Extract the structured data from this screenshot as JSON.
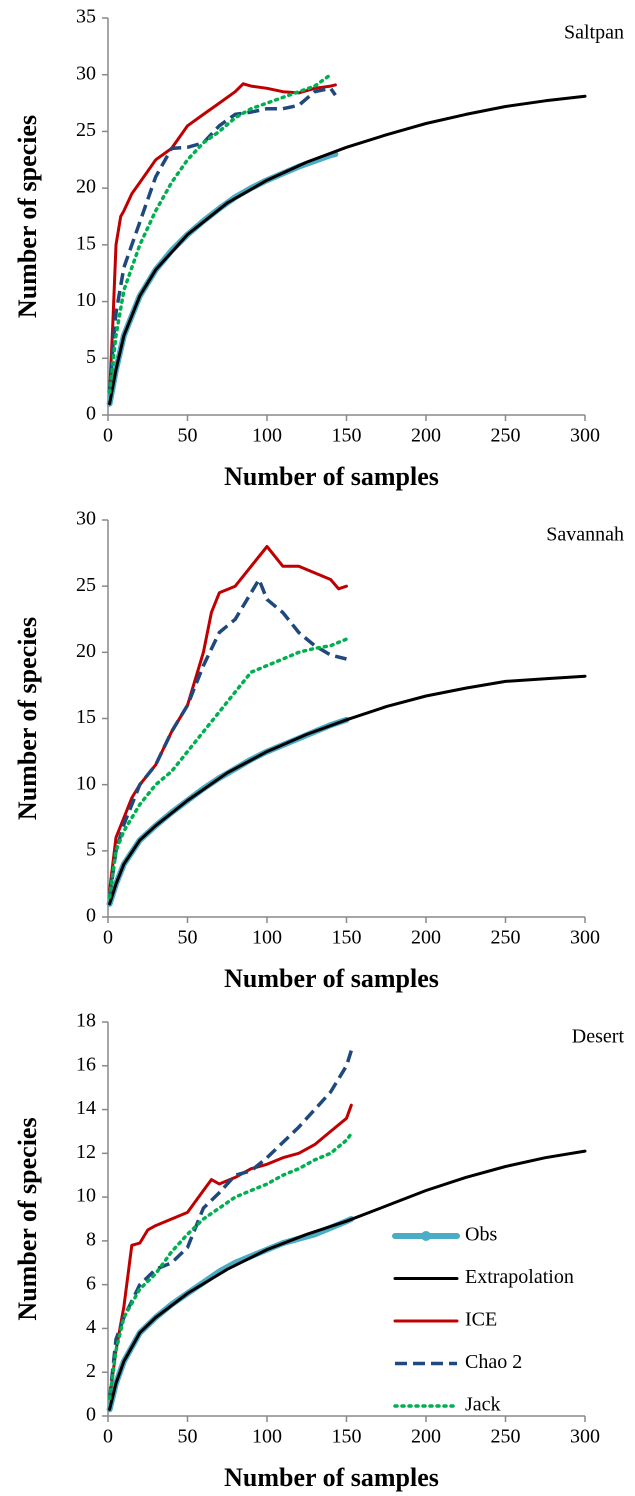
{
  "chart_data": [
    {
      "type": "line",
      "title": "Saltpan",
      "x_label": "Number of samples",
      "y_label": "Number of species",
      "xlim": [
        0,
        300
      ],
      "xticks": [
        0,
        50,
        100,
        150,
        200,
        250,
        300
      ],
      "ylim": [
        0,
        35
      ],
      "yticks": [
        0,
        5,
        10,
        15,
        20,
        25,
        30,
        35
      ],
      "legend": false,
      "series": [
        {
          "color": "#4bacc6",
          "style": "thick",
          "x": [
            1,
            5,
            10,
            20,
            30,
            40,
            50,
            60,
            70,
            80,
            90,
            100,
            110,
            120,
            130,
            140,
            143
          ],
          "values": [
            1,
            4,
            7,
            10.5,
            12.8,
            14.5,
            15.9,
            17.1,
            18.2,
            19.2,
            20,
            20.7,
            21.3,
            21.9,
            22.4,
            22.9,
            23
          ]
        },
        {
          "color": "#000000",
          "style": "solid",
          "x": [
            1,
            5,
            10,
            20,
            30,
            50,
            75,
            100,
            125,
            150,
            175,
            200,
            225,
            250,
            275,
            300
          ],
          "values": [
            1,
            4,
            7,
            10.5,
            12.8,
            15.9,
            18.7,
            20.7,
            22.3,
            23.6,
            24.7,
            25.7,
            26.5,
            27.2,
            27.7,
            28.1
          ]
        },
        {
          "color": "#c00000",
          "style": "solid",
          "x": [
            1,
            3,
            5,
            8,
            10,
            15,
            20,
            25,
            30,
            40,
            50,
            60,
            70,
            80,
            85,
            90,
            100,
            110,
            120,
            130,
            140,
            143
          ],
          "values": [
            2,
            8,
            15,
            17.5,
            18,
            19.5,
            20.5,
            21.5,
            22.5,
            23.5,
            25.5,
            26.5,
            27.5,
            28.5,
            29.2,
            29,
            28.8,
            28.5,
            28.4,
            28.8,
            29,
            29.1
          ]
        },
        {
          "color": "#1f497d",
          "style": "dashed",
          "x": [
            1,
            3,
            5,
            10,
            15,
            20,
            30,
            40,
            50,
            60,
            70,
            80,
            90,
            100,
            110,
            120,
            130,
            140,
            143
          ],
          "values": [
            2,
            6,
            9,
            13,
            15,
            17,
            21,
            23.5,
            23.6,
            24,
            25.5,
            26.5,
            26.7,
            27,
            27,
            27.3,
            28.5,
            28.8,
            28.2
          ]
        },
        {
          "color": "#00b050",
          "style": "dotted",
          "x": [
            1,
            5,
            10,
            20,
            30,
            40,
            50,
            60,
            70,
            80,
            90,
            100,
            110,
            120,
            130,
            140
          ],
          "values": [
            2,
            7,
            11,
            15,
            18,
            20.5,
            22.5,
            24,
            25,
            26.2,
            27,
            27.5,
            28,
            28.5,
            29,
            30
          ]
        }
      ]
    },
    {
      "type": "line",
      "title": "Savannah",
      "x_label": "Number of samples",
      "y_label": "Number of species",
      "xlim": [
        0,
        300
      ],
      "xticks": [
        0,
        50,
        100,
        150,
        200,
        250,
        300
      ],
      "ylim": [
        0,
        30
      ],
      "yticks": [
        0,
        5,
        10,
        15,
        20,
        25,
        30
      ],
      "legend": false,
      "series": [
        {
          "color": "#4bacc6",
          "style": "thick",
          "x": [
            1,
            5,
            10,
            20,
            30,
            40,
            50,
            60,
            70,
            80,
            90,
            100,
            110,
            120,
            130,
            140,
            150
          ],
          "values": [
            1,
            2.5,
            4,
            5.8,
            6.9,
            7.9,
            8.8,
            9.7,
            10.5,
            11.2,
            11.9,
            12.5,
            13,
            13.5,
            14,
            14.5,
            14.9
          ]
        },
        {
          "color": "#000000",
          "style": "solid",
          "x": [
            1,
            5,
            10,
            20,
            30,
            50,
            75,
            100,
            125,
            150,
            175,
            200,
            225,
            250,
            275,
            300
          ],
          "values": [
            1,
            2.5,
            4,
            5.8,
            6.9,
            8.8,
            10.9,
            12.5,
            13.8,
            14.9,
            15.9,
            16.7,
            17.3,
            17.8,
            18,
            18.2
          ]
        },
        {
          "color": "#c00000",
          "style": "solid",
          "x": [
            1,
            5,
            10,
            15,
            20,
            30,
            40,
            50,
            60,
            65,
            70,
            80,
            90,
            100,
            110,
            120,
            130,
            140,
            145,
            150
          ],
          "values": [
            2,
            6,
            7.5,
            9,
            10,
            11.5,
            14,
            16,
            20,
            23,
            24.5,
            25,
            26.5,
            28,
            26.5,
            26.5,
            26,
            25.5,
            24.8,
            25
          ]
        },
        {
          "color": "#1f497d",
          "style": "dashed",
          "x": [
            1,
            5,
            10,
            20,
            30,
            40,
            50,
            60,
            70,
            80,
            90,
            95,
            100,
            110,
            120,
            130,
            140,
            150
          ],
          "values": [
            1.5,
            5,
            7,
            10,
            11.5,
            14,
            16,
            19,
            21.5,
            22.5,
            24.5,
            25.5,
            24,
            23,
            21.5,
            20.5,
            19.8,
            19.5
          ]
        },
        {
          "color": "#00b050",
          "style": "dotted",
          "x": [
            1,
            5,
            10,
            20,
            30,
            40,
            50,
            60,
            70,
            80,
            90,
            100,
            110,
            120,
            130,
            140,
            150
          ],
          "values": [
            1.5,
            5,
            6.5,
            8.5,
            10,
            11,
            12.5,
            14,
            15.5,
            17,
            18.5,
            19,
            19.5,
            20,
            20.3,
            20.5,
            21
          ]
        }
      ]
    },
    {
      "type": "line",
      "title": "Desert",
      "x_label": "Number of samples",
      "y_label": "Number of species",
      "xlim": [
        0,
        300
      ],
      "xticks": [
        0,
        50,
        100,
        150,
        200,
        250,
        300
      ],
      "ylim": [
        0,
        18
      ],
      "yticks": [
        0,
        2,
        4,
        6,
        8,
        10,
        12,
        14,
        16,
        18
      ],
      "legend": "lower-right",
      "series": [
        {
          "name": "Obs",
          "color": "#4bacc6",
          "style": "thick",
          "x": [
            1,
            5,
            10,
            20,
            30,
            40,
            50,
            60,
            70,
            80,
            90,
            100,
            110,
            120,
            130,
            140,
            150,
            153
          ],
          "values": [
            0.3,
            1.5,
            2.5,
            3.8,
            4.5,
            5.1,
            5.6,
            6.1,
            6.6,
            7,
            7.3,
            7.6,
            7.9,
            8.1,
            8.3,
            8.6,
            8.9,
            9
          ]
        },
        {
          "name": "Extrapolation",
          "color": "#000000",
          "style": "solid",
          "x": [
            1,
            5,
            10,
            20,
            30,
            50,
            75,
            100,
            125,
            150,
            175,
            200,
            225,
            250,
            275,
            300
          ],
          "values": [
            0.3,
            1.5,
            2.5,
            3.8,
            4.5,
            5.6,
            6.7,
            7.6,
            8.3,
            8.9,
            9.6,
            10.3,
            10.9,
            11.4,
            11.8,
            12.1
          ]
        },
        {
          "name": "ICE",
          "color": "#c00000",
          "style": "solid",
          "x": [
            1,
            5,
            10,
            15,
            20,
            25,
            30,
            40,
            50,
            60,
            65,
            70,
            80,
            90,
            100,
            110,
            120,
            130,
            140,
            150,
            153
          ],
          "values": [
            0.8,
            3,
            5,
            7.8,
            7.9,
            8.5,
            8.7,
            9,
            9.3,
            10.3,
            10.8,
            10.6,
            10.9,
            11.3,
            11.5,
            11.8,
            12,
            12.4,
            13,
            13.6,
            14.2
          ]
        },
        {
          "name": "Chao 2",
          "color": "#1f497d",
          "style": "dashed",
          "x": [
            1,
            5,
            10,
            20,
            30,
            40,
            50,
            60,
            70,
            80,
            90,
            100,
            110,
            120,
            130,
            140,
            150,
            153
          ],
          "values": [
            0.8,
            3.5,
            4.5,
            6,
            6.7,
            7,
            7.7,
            9.5,
            10.2,
            11,
            11.2,
            11.8,
            12.5,
            13.2,
            14,
            14.8,
            16,
            16.7
          ]
        },
        {
          "name": "Jack",
          "color": "#00b050",
          "style": "dotted",
          "x": [
            1,
            5,
            10,
            20,
            30,
            40,
            50,
            60,
            70,
            80,
            90,
            100,
            110,
            120,
            130,
            140,
            150,
            153
          ],
          "values": [
            0.8,
            3,
            4.5,
            5.8,
            6.5,
            7.5,
            8.3,
            9,
            9.5,
            10,
            10.3,
            10.6,
            11,
            11.3,
            11.7,
            12,
            12.6,
            12.9
          ]
        }
      ]
    }
  ]
}
